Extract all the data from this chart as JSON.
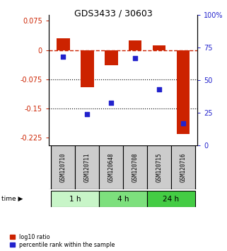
{
  "title": "GDS3433 / 30603",
  "samples": [
    "GSM120710",
    "GSM120711",
    "GSM120648",
    "GSM120708",
    "GSM120715",
    "GSM120716"
  ],
  "log10_ratio": [
    0.03,
    -0.095,
    -0.038,
    0.025,
    0.012,
    -0.215
  ],
  "percentile_rank": [
    68,
    24,
    33,
    67,
    43,
    17
  ],
  "ylim_left": [
    -0.245,
    0.09
  ],
  "ylim_right": [
    0,
    100
  ],
  "yticks_left": [
    0.075,
    0,
    -0.075,
    -0.15,
    -0.225
  ],
  "yticks_right": [
    100,
    75,
    50,
    25,
    0
  ],
  "time_groups": [
    {
      "label": "1 h",
      "start": 0,
      "end": 2,
      "color": "#c8f5c8"
    },
    {
      "label": "4 h",
      "start": 2,
      "end": 4,
      "color": "#7de07d"
    },
    {
      "label": "24 h",
      "start": 4,
      "end": 6,
      "color": "#44cc44"
    }
  ],
  "bar_color": "#cc2200",
  "dot_color": "#2222cc",
  "bar_width": 0.55,
  "hline_zero_color": "#cc2200",
  "hline_dotted_color": "black",
  "sample_bg_color": "#cccccc",
  "background_color": "white"
}
